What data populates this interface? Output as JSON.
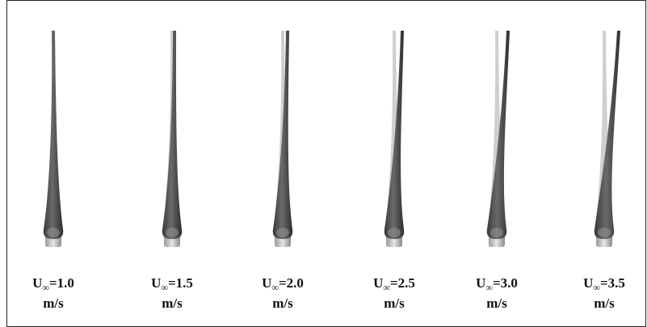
{
  "panels": [
    {
      "label_main": "U",
      "label_sub": "∞",
      "label_rest": "=1.0",
      "unit": "m/s"
    },
    {
      "label_main": "U",
      "label_sub": "∞",
      "label_rest": "=1.5",
      "unit": "m/s"
    },
    {
      "label_main": "U",
      "label_sub": "∞",
      "label_rest": "=2.0",
      "unit": "m/s"
    },
    {
      "label_main": "U",
      "label_sub": "∞",
      "label_rest": "=2.5",
      "unit": "m/s"
    },
    {
      "label_main": "U",
      "label_sub": "∞",
      "label_rest": "=3.0",
      "unit": "m/s"
    },
    {
      "label_main": "U",
      "label_sub": "∞",
      "label_rest": "=3.5",
      "unit": "m/s"
    }
  ]
}
